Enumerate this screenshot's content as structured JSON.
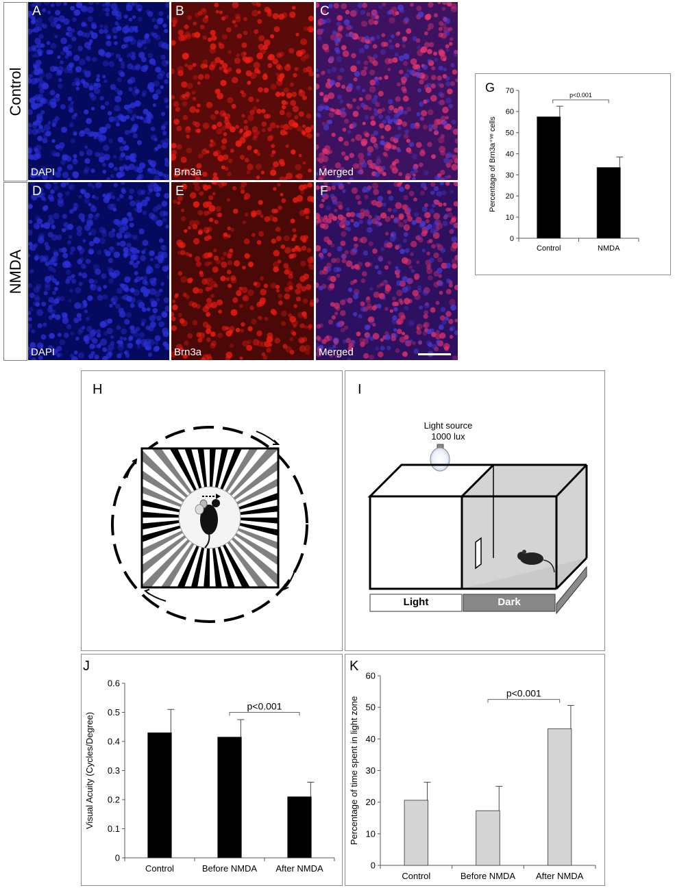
{
  "rows": {
    "control_label": "Control",
    "nmda_label": "NMDA"
  },
  "micrographs": [
    {
      "letter": "A",
      "stain": "DAPI",
      "bg": "#060a5e",
      "cell": "#2a30d6"
    },
    {
      "letter": "B",
      "stain": "Brn3a",
      "bg": "#5a0a08",
      "cell": "#ee1e14"
    },
    {
      "letter": "C",
      "stain": "Merged",
      "bg": "#3d1260",
      "cell": "#e03570"
    },
    {
      "letter": "D",
      "stain": "DAPI",
      "bg": "#060a5e",
      "cell": "#2a30d6"
    },
    {
      "letter": "E",
      "stain": "Brn3a",
      "bg": "#4a0806",
      "cell": "#e81c12"
    },
    {
      "letter": "F",
      "stain": "Merged",
      "bg": "#2d1060",
      "cell": "#d8306a"
    }
  ],
  "panel_h": {
    "letter": "H"
  },
  "panel_i": {
    "letter": "I",
    "light_source": "Light source",
    "lux": "1000 lux",
    "light_label": "Light",
    "dark_label": "Dark"
  },
  "chart_data": [
    {
      "panel": "G",
      "type": "bar",
      "categories": [
        "Control",
        "NMDA"
      ],
      "values": [
        57.5,
        33.5
      ],
      "errors": [
        5,
        5
      ],
      "ylabel": "Percentage of Brn3a⁺ᵛᵉ cells",
      "ylim": [
        0,
        70
      ],
      "yticks": [
        0,
        10,
        20,
        30,
        40,
        50,
        60,
        70
      ],
      "annotation": "p<0.001",
      "bar_color": "#000000"
    },
    {
      "panel": "J",
      "type": "bar",
      "categories": [
        "Control",
        "Before NMDA",
        "After NMDA"
      ],
      "values": [
        0.43,
        0.415,
        0.21
      ],
      "errors": [
        0.08,
        0.06,
        0.05
      ],
      "ylabel": "Visual Acuity (Cycles/Degree)",
      "ylim": [
        0,
        0.6
      ],
      "yticks": [
        "0",
        "0.1",
        "0.2",
        "0.3",
        "0.4",
        "0.5",
        "0.6"
      ],
      "annotation": "p<0.001",
      "bar_color": "#000000"
    },
    {
      "panel": "K",
      "type": "bar",
      "categories": [
        "Control",
        "Before NMDA",
        "After NMDA"
      ],
      "values": [
        20.6,
        17.3,
        43.2
      ],
      "errors": [
        5.7,
        7.7,
        7.4
      ],
      "ylabel": "Percentage of time spent in light zone",
      "ylim": [
        0,
        60
      ],
      "yticks": [
        0,
        10,
        20,
        30,
        40,
        50,
        60
      ],
      "annotation": "p<0.001",
      "bar_color": "#d4d4d4"
    }
  ]
}
